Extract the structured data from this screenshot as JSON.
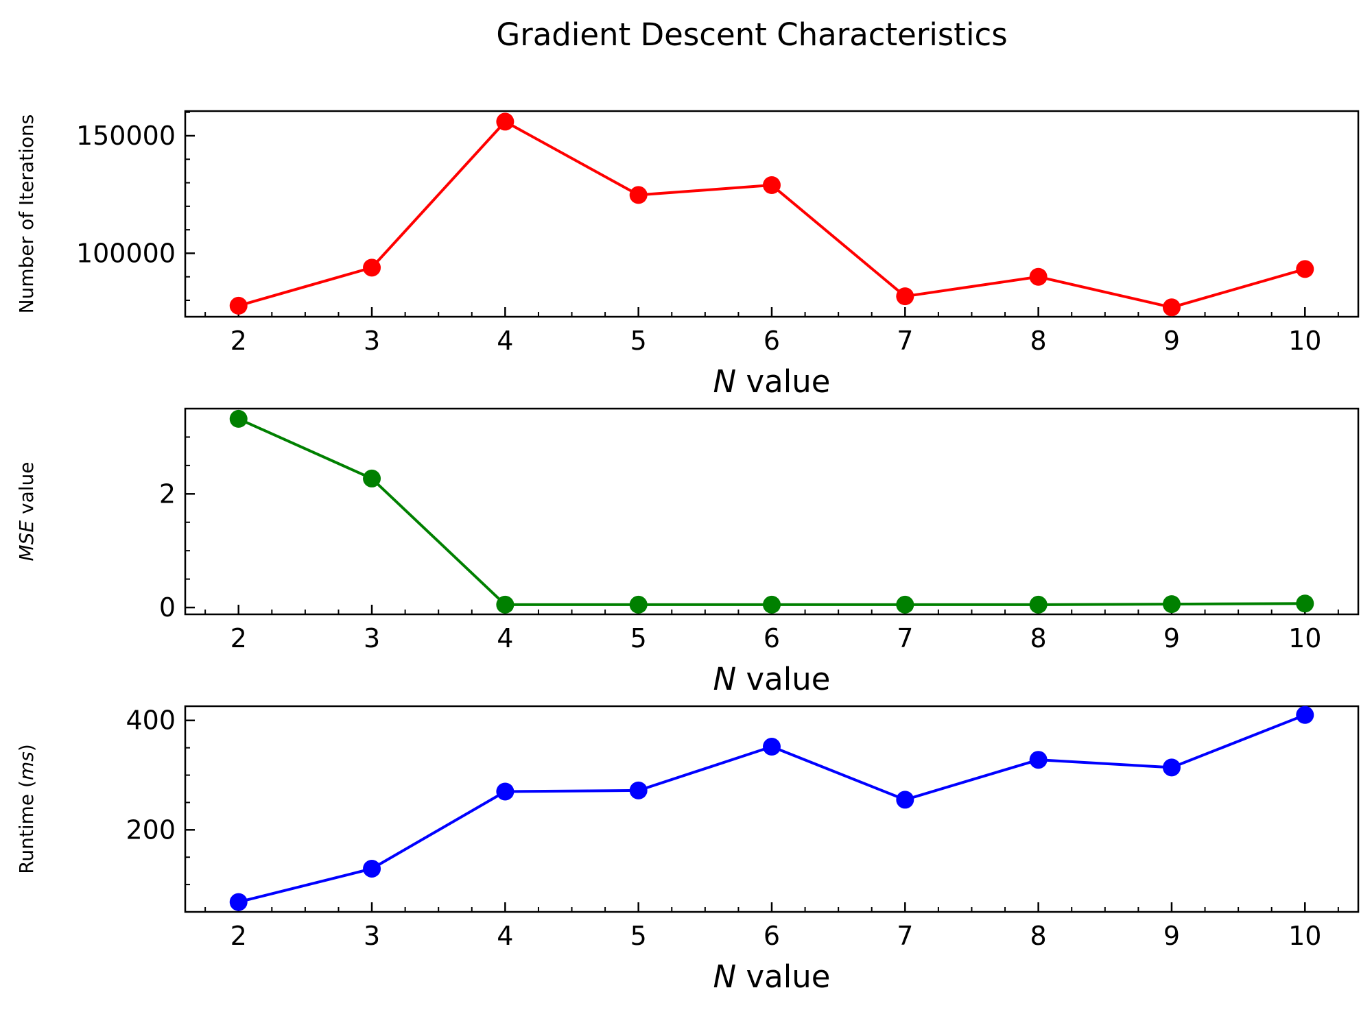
{
  "chart_data": {
    "title": "Gradient Descent Characteristics",
    "subplots": [
      {
        "type": "line",
        "color": "#ff0000",
        "ylabel": {
          "pre": "Number of Iterations",
          "it": "",
          "post": ""
        },
        "xlabel": {
          "it": "N",
          "post": " value"
        },
        "x": [
          2,
          3,
          4,
          5,
          6,
          7,
          8,
          9,
          10
        ],
        "y": [
          77700,
          93900,
          156000,
          124800,
          129000,
          81700,
          90000,
          77000,
          93300
        ],
        "ylim": [
          73000,
          160500
        ],
        "xlim": [
          1.6,
          10.4
        ],
        "yticks": [
          100000,
          150000
        ],
        "ytick_labels": [
          "100000",
          "150000"
        ],
        "yminor_step": 10000,
        "xticks": [
          2,
          3,
          4,
          5,
          6,
          7,
          8,
          9,
          10
        ],
        "xtick_labels": [
          "2",
          "3",
          "4",
          "5",
          "6",
          "7",
          "8",
          "9",
          "10"
        ],
        "grid": false
      },
      {
        "type": "line",
        "color": "#008000",
        "ylabel": {
          "pre": "",
          "it": "MSE",
          "post": " value"
        },
        "xlabel": {
          "it": "N",
          "post": " value"
        },
        "x": [
          2,
          3,
          4,
          5,
          6,
          7,
          8,
          9,
          10
        ],
        "y": [
          3.32,
          2.27,
          0.05,
          0.05,
          0.05,
          0.05,
          0.05,
          0.06,
          0.07
        ],
        "ylim": [
          -0.12,
          3.5
        ],
        "xlim": [
          1.6,
          10.4
        ],
        "yticks": [
          0,
          2
        ],
        "ytick_labels": [
          "0",
          "2"
        ],
        "yminor_step": 0.5,
        "xticks": [
          2,
          3,
          4,
          5,
          6,
          7,
          8,
          9,
          10
        ],
        "xtick_labels": [
          "2",
          "3",
          "4",
          "5",
          "6",
          "7",
          "8",
          "9",
          "10"
        ],
        "grid": false
      },
      {
        "type": "line",
        "color": "#0000ff",
        "ylabel": {
          "pre": "Runtime (",
          "it": "ms",
          "post": ")"
        },
        "xlabel": {
          "it": "N",
          "post": " value"
        },
        "x": [
          2,
          3,
          4,
          5,
          6,
          7,
          8,
          9,
          10
        ],
        "y": [
          68,
          129,
          270,
          272,
          352,
          255,
          328,
          314,
          410
        ],
        "ylim": [
          50,
          426
        ],
        "xlim": [
          1.6,
          10.4
        ],
        "yticks": [
          200,
          400
        ],
        "ytick_labels": [
          "200",
          "400"
        ],
        "yminor_step": 50,
        "xticks": [
          2,
          3,
          4,
          5,
          6,
          7,
          8,
          9,
          10
        ],
        "xtick_labels": [
          "2",
          "3",
          "4",
          "5",
          "6",
          "7",
          "8",
          "9",
          "10"
        ],
        "grid": false
      }
    ]
  }
}
